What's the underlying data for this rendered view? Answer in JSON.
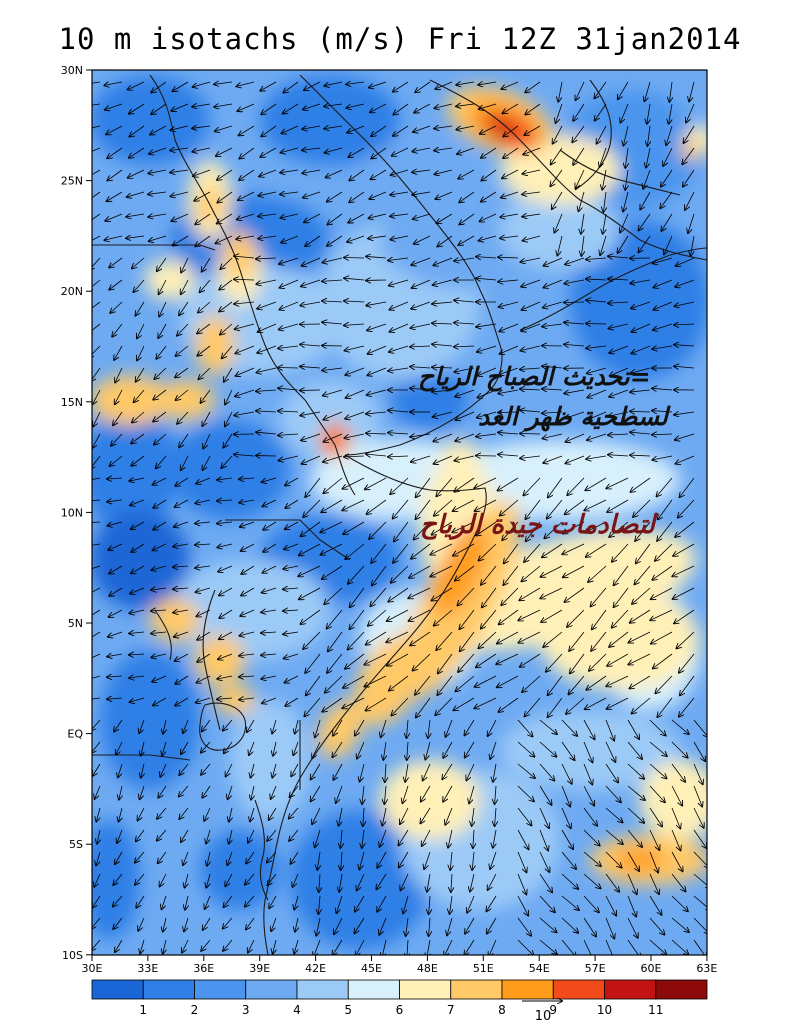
{
  "title": "10 m isotachs (m/s) Fri 12Z 31jan2014",
  "y_ticks": [
    "30N",
    "25N",
    "20N",
    "15N",
    "10N",
    "5N",
    "EQ",
    "5S",
    "10S"
  ],
  "x_ticks": [
    "30E",
    "33E",
    "36E",
    "39E",
    "42E",
    "45E",
    "48E",
    "51E",
    "54E",
    "57E",
    "60E",
    "63E"
  ],
  "colorbar": {
    "colors": [
      "#1a66d6",
      "#2f7fe6",
      "#4b95ee",
      "#6eaaf2",
      "#9ccaf7",
      "#d8f0fb",
      "#fff0b8",
      "#ffc968",
      "#ff9c1a",
      "#f24a1a",
      "#c21414",
      "#8c0a0a"
    ],
    "labels": [
      "1",
      "2",
      "3",
      "4",
      "5",
      "6",
      "7",
      "8",
      "9",
      "10",
      "11"
    ],
    "vector_ref": "10"
  },
  "annotations": {
    "line1": "=تحديث الصباح الرياح",
    "line2": "لسطحية ظهر الغد",
    "line3": "لتصادمات جيدة الرياح"
  }
}
